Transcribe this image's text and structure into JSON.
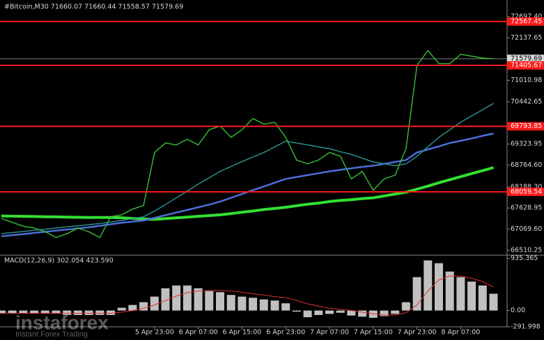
{
  "chart_data": [
    {
      "type": "line",
      "title": "#Bitcoin,M30  71660.07 71660.44 71558.57 71579.69",
      "categories": [
        null,
        null,
        null,
        null,
        null,
        null,
        null,
        null,
        null,
        null,
        null,
        null,
        null,
        null,
        "5 Apr 23:00",
        null,
        null,
        null,
        "6 Apr 07:00",
        null,
        null,
        null,
        "6 Apr 15:00",
        null,
        null,
        null,
        "6 Apr 23:00",
        null,
        null,
        null,
        "7 Apr 07:00",
        null,
        null,
        null,
        "7 Apr 15:00",
        null,
        null,
        null,
        "7 Apr 23:00",
        null,
        null,
        null,
        "8 Apr 07:00",
        null,
        null,
        null
      ],
      "series": [
        {
          "color": "#35c235",
          "values": [
            67350,
            67250,
            67150,
            67100,
            67000,
            66850,
            66950,
            67100,
            67000,
            66850,
            67400,
            67450,
            67600,
            67700,
            69100,
            69350,
            69300,
            69450,
            69300,
            69700,
            69800,
            69500,
            69700,
            70000,
            69850,
            69900,
            69500,
            68900,
            68800,
            68900,
            69100,
            69000,
            68400,
            68600,
            68100,
            68400,
            68500,
            69200,
            71400,
            71800,
            71450,
            71450,
            71700,
            71650,
            71600,
            71579.69
          ]
        },
        {
          "color": "#2a8f8f",
          "values": [
            66950,
            66980,
            67010,
            67040,
            67070,
            67100,
            67130,
            67160,
            67190,
            67220,
            67260,
            67300,
            67350,
            67400,
            67550,
            67720,
            67900,
            68080,
            68260,
            68430,
            68600,
            68730,
            68860,
            68980,
            69100,
            69250,
            69400,
            69350,
            69300,
            69250,
            69200,
            69120,
            69050,
            68950,
            68850,
            68800,
            68750,
            68800,
            69000,
            69250,
            69500,
            69700,
            69900,
            70070,
            70230,
            70400
          ]
        },
        {
          "color": "#4a6fd8",
          "values": [
            66880,
            66910,
            66940,
            66970,
            67000,
            67030,
            67060,
            67090,
            67120,
            67160,
            67200,
            67240,
            67270,
            67300,
            67370,
            67440,
            67510,
            67580,
            67650,
            67720,
            67800,
            67900,
            68000,
            68100,
            68200,
            68300,
            68400,
            68450,
            68500,
            68550,
            68600,
            68640,
            68680,
            68720,
            68750,
            68800,
            68850,
            68900,
            69100,
            69180,
            69260,
            69350,
            69410,
            69470,
            69540,
            69600
          ]
        },
        {
          "color": "#33e033",
          "values": [
            67420,
            67415,
            67410,
            67405,
            67400,
            67395,
            67390,
            67385,
            67380,
            67380,
            67380,
            67370,
            67355,
            67340,
            67330,
            67350,
            67370,
            67390,
            67410,
            67430,
            67450,
            67480,
            67520,
            67550,
            67590,
            67620,
            67650,
            67690,
            67730,
            67760,
            67800,
            67830,
            67850,
            67880,
            67900,
            67950,
            68000,
            68050,
            68130,
            68210,
            68300,
            68380,
            68460,
            68540,
            68620,
            68700
          ]
        }
      ],
      "levels": [
        72567.45,
        71405.67,
        69793.85,
        68059.54
      ],
      "level_color": "#ff1a1a",
      "current_price": 71579.69,
      "ylim": [
        66400,
        73100
      ],
      "yticks": [
        {
          "value": 72697.4,
          "label": "72697.40"
        },
        72137.65,
        71010.98,
        70442.65,
        69323.95,
        {
          "value": 68764.6,
          "label": "68764.60"
        },
        {
          "value": 68188.3,
          "label": "68188.30"
        },
        67628.95,
        {
          "value": 67069.6,
          "label": "67069.60"
        },
        66510.25
      ]
    },
    {
      "type": "macd",
      "title": "MACD(12,26,9) 302.054 423.590",
      "series": [
        {
          "color": "#c0c0c0",
          "values": [
            -50,
            -50,
            -50,
            -50,
            -50,
            -50,
            -80,
            -80,
            -80,
            -80,
            -80,
            50,
            100,
            150,
            250,
            400,
            450,
            450,
            400,
            350,
            330,
            280,
            250,
            230,
            200,
            180,
            130,
            -20,
            -120,
            -80,
            -60,
            -40,
            -90,
            -110,
            -130,
            -100,
            -60,
            150,
            600,
            900,
            850,
            700,
            600,
            520,
            450,
            302.054
          ]
        },
        {
          "color": "#e03030",
          "values": [
            -50,
            -50,
            -50,
            -50,
            -50,
            -50,
            -50,
            -50,
            -50,
            -50,
            -50,
            -30,
            0,
            40,
            100,
            180,
            260,
            320,
            350,
            360,
            360,
            350,
            330,
            300,
            280,
            250,
            230,
            180,
            120,
            80,
            40,
            20,
            0,
            -30,
            -60,
            -80,
            -80,
            -40,
            100,
            350,
            550,
            620,
            620,
            580,
            520,
            423.59
          ]
        }
      ],
      "ylim": [
        -292,
        982
      ],
      "yticks": [
        935.365,
        {
          "value": 0,
          "label": "0.00"
        },
        -291.998
      ]
    }
  ],
  "watermark": [
    "instaforex",
    "Instant Forex Trading"
  ]
}
